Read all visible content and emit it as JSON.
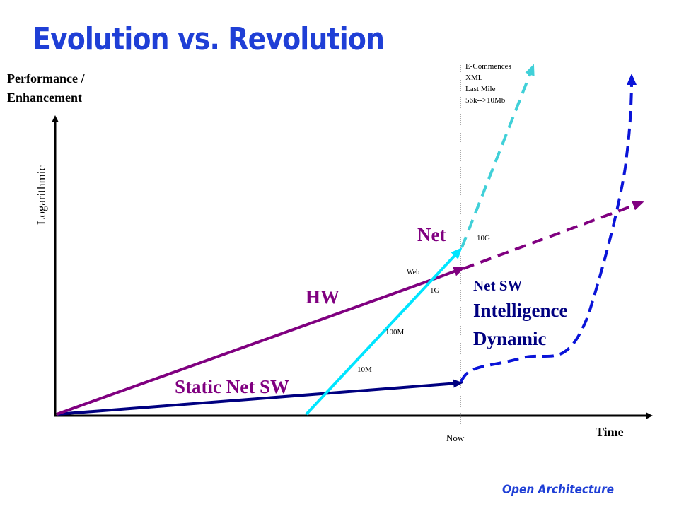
{
  "title": "Evolution vs. Revolution",
  "y_axis": {
    "line1": "Performance /",
    "line2": "Enhancement",
    "scale": "Logarithmic"
  },
  "x_axis": {
    "label": "Time",
    "marker": "Now"
  },
  "labels": {
    "net": "Net",
    "hw": "HW",
    "static_net_sw": "Static Net SW",
    "net_sw": "Net SW",
    "intelligence": "Intelligence",
    "dynamic": "Dynamic"
  },
  "net_milestones": [
    "10M",
    "100M",
    "1G",
    "Web",
    "10G"
  ],
  "future_notes": [
    "E-Commences",
    "XML",
    "Last Mile",
    "56k-->10Mb"
  ],
  "footer": "Open Architecture",
  "colors": {
    "title": "#1f3fd6",
    "hw": "#800080",
    "net": "#00e5ff",
    "net_future": "#40d0d8",
    "static_sw": "#000080",
    "net_sw_future": "#0a14d8",
    "label_purple": "#800080",
    "label_navy": "#000080"
  }
}
